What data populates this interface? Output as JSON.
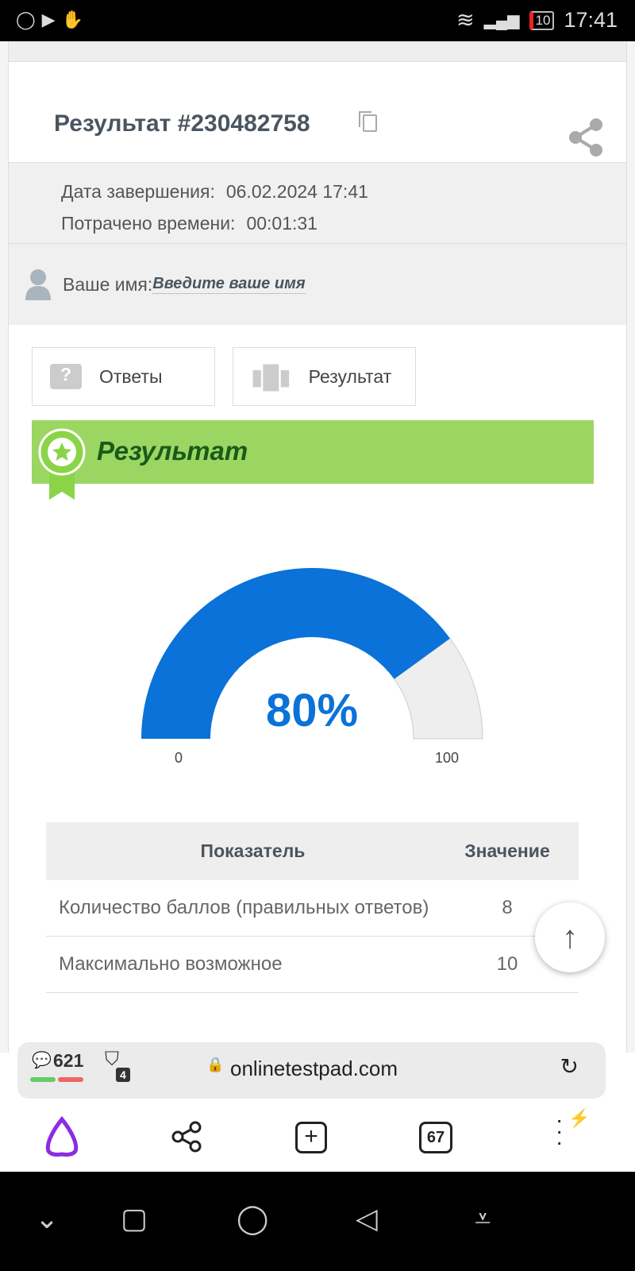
{
  "status_bar": {
    "time": "17:41",
    "battery": "10"
  },
  "header": {
    "title": "Результат #230482758"
  },
  "info": {
    "date_label": "Дата завершения:",
    "date_value": "06.02.2024 17:41",
    "time_label": "Потрачено времени:",
    "time_value": "00:01:31"
  },
  "user": {
    "label": "Ваше имя:",
    "placeholder": "Введите ваше имя"
  },
  "tabs": [
    {
      "label": "Ответы"
    },
    {
      "label": "Результат"
    }
  ],
  "banner": {
    "title": "Результат"
  },
  "gauge": {
    "value": 80,
    "min": 0,
    "max": 100,
    "display": "80%",
    "fill_color": "#0a72d8",
    "rest_color": "#eeeeee"
  },
  "table": {
    "headers": [
      "Показатель",
      "Значение"
    ],
    "rows": [
      {
        "name": "Количество баллов (правильных ответов)",
        "value": "8"
      },
      {
        "name": "Максимально возможное",
        "value": "10"
      }
    ]
  },
  "browser": {
    "comments": "621",
    "shield_count": "4",
    "url": "onlinetestpad.com",
    "tabs_count": "67"
  }
}
